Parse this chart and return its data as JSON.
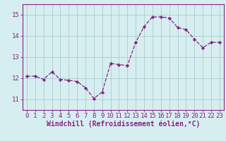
{
  "x": [
    0,
    1,
    2,
    3,
    4,
    5,
    6,
    7,
    8,
    9,
    10,
    11,
    12,
    13,
    14,
    15,
    16,
    17,
    18,
    19,
    20,
    21,
    22,
    23
  ],
  "y": [
    12.1,
    12.1,
    11.95,
    12.3,
    11.95,
    11.9,
    11.85,
    11.55,
    11.05,
    11.35,
    12.7,
    12.65,
    12.6,
    13.7,
    14.45,
    14.9,
    14.9,
    14.85,
    14.4,
    14.3,
    13.85,
    13.45,
    13.7,
    13.7
  ],
  "line_color": "#882288",
  "marker": "D",
  "marker_size": 2.2,
  "bg_color": "#d6eef0",
  "grid_color": "#aacccc",
  "xlabel": "Windchill (Refroidissement éolien,°C)",
  "ylim": [
    10.5,
    15.5
  ],
  "yticks": [
    11,
    12,
    13,
    14,
    15
  ],
  "xticks": [
    0,
    1,
    2,
    3,
    4,
    5,
    6,
    7,
    8,
    9,
    10,
    11,
    12,
    13,
    14,
    15,
    16,
    17,
    18,
    19,
    20,
    21,
    22,
    23
  ],
  "xlabel_fontsize": 7,
  "tick_fontsize": 6.5,
  "tick_color": "#882288",
  "label_color": "#882288",
  "spine_color": "#882288"
}
